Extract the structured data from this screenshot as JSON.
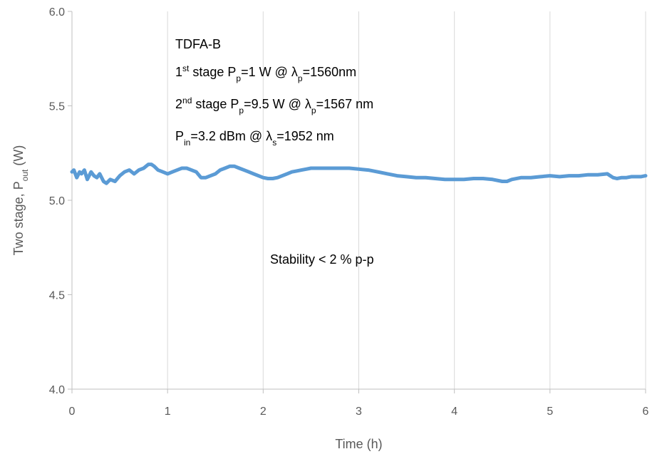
{
  "chart_data": {
    "type": "line",
    "xlabel": "Time (h)",
    "ylabel": {
      "base": "Two stage, P",
      "sub": "out",
      "tail": " (W)"
    },
    "xlim": [
      0,
      6
    ],
    "ylim": [
      4.0,
      6.0
    ],
    "x_ticks": [
      "0",
      "1",
      "2",
      "3",
      "4",
      "5",
      "6"
    ],
    "y_ticks": [
      "4.0",
      "4.5",
      "5.0",
      "5.5",
      "6.0"
    ],
    "grid": "vertical",
    "series": [
      {
        "color": "#5B9BD5",
        "x": [
          0.0,
          0.02,
          0.05,
          0.08,
          0.1,
          0.13,
          0.16,
          0.2,
          0.23,
          0.26,
          0.29,
          0.33,
          0.36,
          0.4,
          0.45,
          0.5,
          0.55,
          0.6,
          0.65,
          0.7,
          0.75,
          0.8,
          0.83,
          0.86,
          0.9,
          0.95,
          1.0,
          1.05,
          1.1,
          1.15,
          1.2,
          1.25,
          1.3,
          1.35,
          1.4,
          1.45,
          1.5,
          1.55,
          1.6,
          1.65,
          1.7,
          1.75,
          1.8,
          1.85,
          1.9,
          1.95,
          2.0,
          2.05,
          2.1,
          2.15,
          2.2,
          2.25,
          2.3,
          2.35,
          2.4,
          2.45,
          2.5,
          2.6,
          2.7,
          2.8,
          2.9,
          3.0,
          3.1,
          3.2,
          3.3,
          3.4,
          3.5,
          3.6,
          3.7,
          3.8,
          3.9,
          4.0,
          4.1,
          4.2,
          4.3,
          4.4,
          4.5,
          4.55,
          4.6,
          4.7,
          4.8,
          4.9,
          5.0,
          5.1,
          5.2,
          5.3,
          5.4,
          5.5,
          5.6,
          5.63,
          5.66,
          5.7,
          5.75,
          5.8,
          5.85,
          5.9,
          5.95,
          6.0
        ],
        "y": [
          5.15,
          5.16,
          5.12,
          5.15,
          5.14,
          5.16,
          5.11,
          5.15,
          5.13,
          5.12,
          5.14,
          5.1,
          5.09,
          5.11,
          5.1,
          5.13,
          5.15,
          5.16,
          5.14,
          5.16,
          5.17,
          5.19,
          5.19,
          5.18,
          5.16,
          5.15,
          5.14,
          5.15,
          5.16,
          5.17,
          5.17,
          5.16,
          5.15,
          5.12,
          5.12,
          5.13,
          5.14,
          5.16,
          5.17,
          5.18,
          5.18,
          5.17,
          5.16,
          5.15,
          5.14,
          5.13,
          5.12,
          5.115,
          5.115,
          5.12,
          5.13,
          5.14,
          5.15,
          5.155,
          5.16,
          5.165,
          5.17,
          5.17,
          5.17,
          5.17,
          5.17,
          5.165,
          5.16,
          5.15,
          5.14,
          5.13,
          5.125,
          5.12,
          5.12,
          5.115,
          5.11,
          5.11,
          5.11,
          5.115,
          5.115,
          5.11,
          5.1,
          5.1,
          5.11,
          5.12,
          5.12,
          5.125,
          5.13,
          5.125,
          5.13,
          5.13,
          5.135,
          5.135,
          5.14,
          5.13,
          5.12,
          5.115,
          5.12,
          5.12,
          5.125,
          5.125,
          5.125,
          5.13
        ]
      }
    ],
    "annotations": [
      {
        "parts": [
          {
            "t": "TDFA-B"
          }
        ]
      },
      {
        "parts": [
          {
            "t": "1"
          },
          {
            "t": "st",
            "sup": true
          },
          {
            "t": " stage P"
          },
          {
            "t": "p",
            "sub": true
          },
          {
            "t": "=1 W @ λ"
          },
          {
            "t": "p",
            "sub": true
          },
          {
            "t": "=1560nm"
          }
        ]
      },
      {
        "parts": [
          {
            "t": "2"
          },
          {
            "t": "nd",
            "sup": true
          },
          {
            "t": " stage P"
          },
          {
            "t": "p",
            "sub": true
          },
          {
            "t": "=9.5 W @ λ"
          },
          {
            "t": "p",
            "sub": true
          },
          {
            "t": "=1567 nm"
          }
        ]
      },
      {
        "parts": [
          {
            "t": "P"
          },
          {
            "t": "in",
            "sub": true
          },
          {
            "t": "=3.2 dBm @ λ"
          },
          {
            "t": "s",
            "sub": true
          },
          {
            "t": "=1952 nm"
          }
        ]
      },
      {
        "parts": [
          {
            "t": "Stability < 2 % p-p"
          }
        ]
      }
    ]
  }
}
